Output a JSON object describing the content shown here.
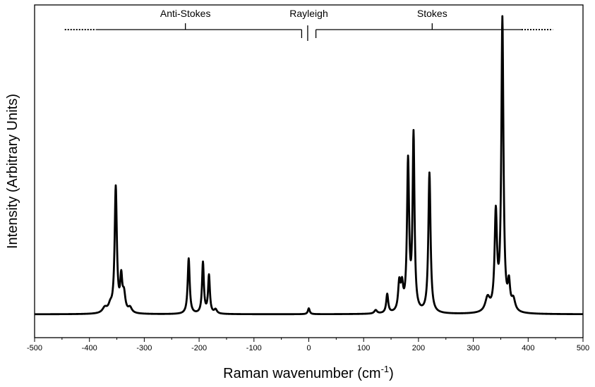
{
  "chart_data": {
    "type": "line",
    "title": "",
    "xlabel": "Raman wavenumber (cm",
    "xlabel_superscript": "-1",
    "xlabel_suffix": ")",
    "ylabel": "Intensity (Arbitrary Units)",
    "xlim": [
      -500,
      500
    ],
    "ylim": [
      -0.08,
      1.06
    ],
    "x_ticks": [
      -500,
      -400,
      -300,
      -200,
      -100,
      0,
      100,
      200,
      300,
      400,
      500
    ],
    "x_tick_labels": [
      "-500",
      "-400",
      "-300",
      "-200",
      "-100",
      "0",
      "100",
      "200",
      "300",
      "400",
      "500"
    ],
    "grid": false,
    "legend": "none",
    "baseline": 0.0,
    "regions": [
      {
        "label": "Anti-Stokes",
        "from": -450,
        "to": -10,
        "label_x": -225
      },
      {
        "label": "Rayleigh",
        "label_x": 0
      },
      {
        "label": "Stokes",
        "from": 10,
        "to": 450,
        "label_x": 225
      }
    ],
    "peaks": [
      {
        "x": -372,
        "height": 0.018,
        "width": 5
      },
      {
        "x": -362,
        "height": 0.022,
        "width": 4
      },
      {
        "x": -352,
        "height": 0.43,
        "width": 2.4
      },
      {
        "x": -342,
        "height": 0.11,
        "width": 2.2
      },
      {
        "x": -337,
        "height": 0.06,
        "width": 3
      },
      {
        "x": -326,
        "height": 0.018,
        "width": 4
      },
      {
        "x": -219,
        "height": 0.19,
        "width": 2.2
      },
      {
        "x": -193,
        "height": 0.175,
        "width": 2.0
      },
      {
        "x": -182,
        "height": 0.13,
        "width": 2.0
      },
      {
        "x": -170,
        "height": 0.014,
        "width": 3
      },
      {
        "x": 0,
        "height": 0.02,
        "width": 2
      },
      {
        "x": 122,
        "height": 0.012,
        "width": 3
      },
      {
        "x": 143,
        "height": 0.065,
        "width": 2.2
      },
      {
        "x": 165,
        "height": 0.095,
        "width": 2.5
      },
      {
        "x": 170,
        "height": 0.08,
        "width": 2.5
      },
      {
        "x": 181,
        "height": 0.51,
        "width": 2.3
      },
      {
        "x": 191,
        "height": 0.6,
        "width": 2.1
      },
      {
        "x": 220,
        "height": 0.48,
        "width": 2.4
      },
      {
        "x": 326,
        "height": 0.048,
        "width": 5
      },
      {
        "x": 341,
        "height": 0.33,
        "width": 2.6
      },
      {
        "x": 353,
        "height": 1.0,
        "width": 2.3
      },
      {
        "x": 365,
        "height": 0.085,
        "width": 2.4
      },
      {
        "x": 373,
        "height": 0.04,
        "width": 4
      }
    ]
  }
}
